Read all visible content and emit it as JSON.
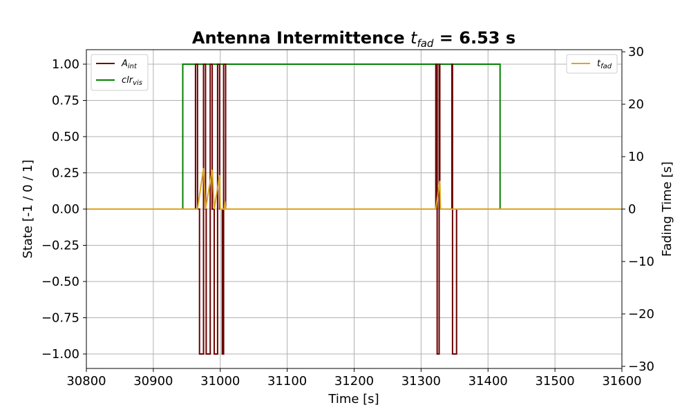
{
  "chart_data": {
    "type": "line",
    "title": "Antenna Intermittence ",
    "title_math": "t",
    "title_math_sub": "fad",
    "title_value": " = 6.53 s",
    "xlabel": "Time [s]",
    "ylabel": "State [-1 / 0 / 1]",
    "y2label": "Fading Time [s]",
    "xlim": [
      30800,
      31600
    ],
    "ylim": [
      -1.1,
      1.1
    ],
    "y2lim": [
      -30.4,
      30.4
    ],
    "xticks": [
      "30800",
      "30900",
      "31000",
      "31100",
      "31200",
      "31300",
      "31400",
      "31500",
      "31600"
    ],
    "xtick_values": [
      30800,
      30900,
      31000,
      31100,
      31200,
      31300,
      31400,
      31500,
      31600
    ],
    "yticks": [
      "−1.00",
      "−0.75",
      "−0.50",
      "−0.25",
      "0.00",
      "0.25",
      "0.50",
      "0.75",
      "1.00"
    ],
    "ytick_values": [
      -1,
      -0.75,
      -0.5,
      -0.25,
      0,
      0.25,
      0.5,
      0.75,
      1
    ],
    "y2ticks": [
      "−30",
      "−20",
      "−10",
      "0",
      "10",
      "20",
      "30"
    ],
    "y2tick_values": [
      -30,
      -20,
      -10,
      0,
      10,
      20,
      30
    ],
    "grid": true,
    "legend_left": "top-left",
    "legend_right": "top-right",
    "series": [
      {
        "name": "A",
        "name_sub": "int",
        "axis": "left",
        "color": "#6b0000",
        "points": [
          [
            30800,
            0
          ],
          [
            30963,
            0
          ],
          [
            30963,
            1
          ],
          [
            30966,
            1
          ],
          [
            30966,
            0
          ],
          [
            30969,
            0
          ],
          [
            30969,
            -1
          ],
          [
            30975,
            -1
          ],
          [
            30975,
            1
          ],
          [
            30978,
            1
          ],
          [
            30978,
            0
          ],
          [
            30979,
            0
          ],
          [
            30979,
            -1
          ],
          [
            30985,
            -1
          ],
          [
            30985,
            1
          ],
          [
            30988,
            1
          ],
          [
            30988,
            0
          ],
          [
            30991,
            0
          ],
          [
            30991,
            -1
          ],
          [
            30996,
            -1
          ],
          [
            30996,
            1
          ],
          [
            30999,
            1
          ],
          [
            30999,
            0
          ],
          [
            31003,
            0
          ],
          [
            31003,
            -1
          ],
          [
            31005,
            -1
          ],
          [
            31005,
            1
          ],
          [
            31008,
            1
          ],
          [
            31008,
            0
          ],
          [
            31322,
            0
          ],
          [
            31322,
            1
          ],
          [
            31324,
            1
          ],
          [
            31324,
            -1
          ],
          [
            31327,
            -1
          ],
          [
            31327,
            1
          ],
          [
            31328,
            1
          ],
          [
            31328,
            0
          ],
          [
            31346,
            0
          ],
          [
            31346,
            1
          ],
          [
            31347,
            1
          ],
          [
            31347,
            -1
          ],
          [
            31353,
            -1
          ],
          [
            31353,
            0
          ],
          [
            31600,
            0
          ]
        ]
      },
      {
        "name": "clr",
        "name_sub": "vis",
        "axis": "left",
        "color": "#008000",
        "points": [
          [
            30800,
            0
          ],
          [
            30944,
            0
          ],
          [
            30944,
            1
          ],
          [
            31418,
            1
          ],
          [
            31418,
            0
          ],
          [
            31600,
            0
          ]
        ]
      },
      {
        "name": "t",
        "name_sub": "fad",
        "axis": "right",
        "color": "#DAA520",
        "points": [
          [
            30800,
            0
          ],
          [
            30966,
            0
          ],
          [
            30975,
            7.8
          ],
          [
            30978,
            0
          ],
          [
            30988,
            7.5
          ],
          [
            30991,
            0
          ],
          [
            30999,
            6.5
          ],
          [
            31000,
            0
          ],
          [
            31006,
            0
          ],
          [
            31007,
            1.5
          ],
          [
            31008,
            0
          ],
          [
            31322,
            0
          ],
          [
            31328,
            5.4
          ],
          [
            31329,
            0
          ],
          [
            31600,
            0
          ]
        ]
      }
    ]
  }
}
